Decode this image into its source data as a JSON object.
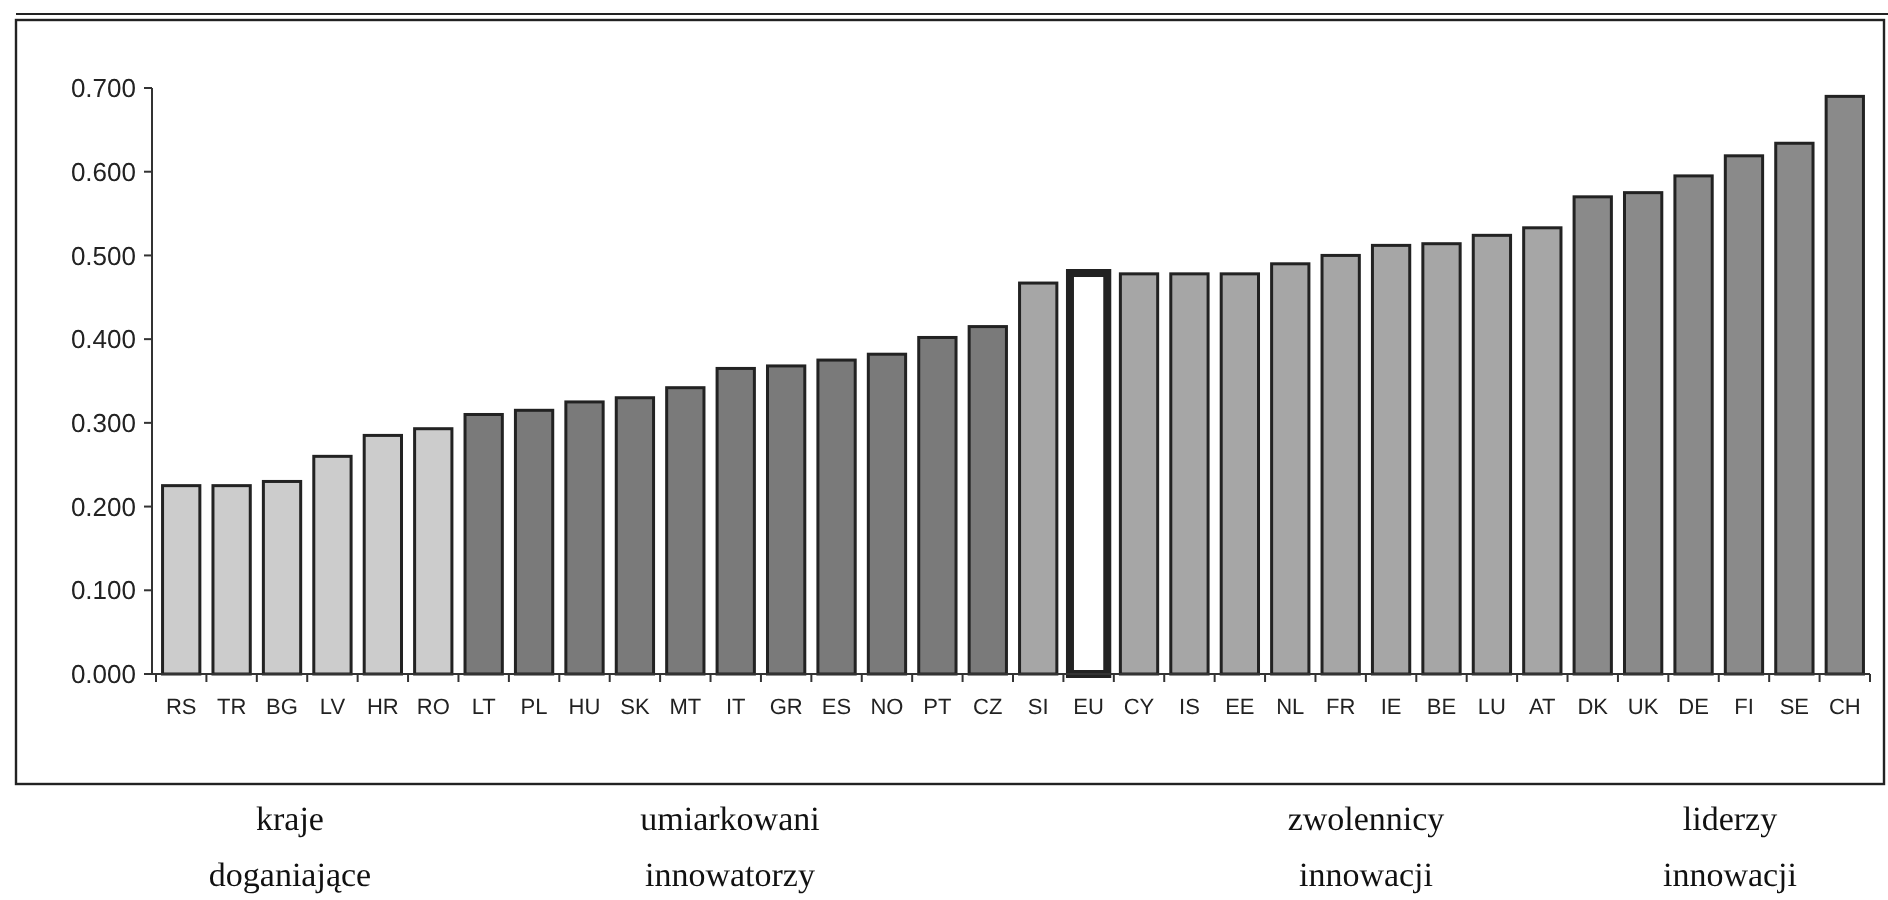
{
  "chart_data": {
    "type": "bar",
    "categories": [
      "RS",
      "TR",
      "BG",
      "LV",
      "HR",
      "RO",
      "LT",
      "PL",
      "HU",
      "SK",
      "MT",
      "IT",
      "GR",
      "ES",
      "NO",
      "PT",
      "CZ",
      "SI",
      "EU",
      "CY",
      "IS",
      "EE",
      "NL",
      "FR",
      "IE",
      "BE",
      "LU",
      "AT",
      "DK",
      "UK",
      "DE",
      "FI",
      "SE",
      "CH"
    ],
    "values": [
      0.225,
      0.225,
      0.23,
      0.26,
      0.285,
      0.293,
      0.31,
      0.315,
      0.325,
      0.33,
      0.342,
      0.365,
      0.368,
      0.375,
      0.382,
      0.402,
      0.415,
      0.467,
      0.479,
      0.478,
      0.478,
      0.478,
      0.49,
      0.5,
      0.512,
      0.514,
      0.524,
      0.533,
      0.57,
      0.575,
      0.595,
      0.619,
      0.634,
      0.69
    ],
    "colors": [
      "#cccccc",
      "#cccccc",
      "#cccccc",
      "#cccccc",
      "#cccccc",
      "#cccccc",
      "#7a7a7a",
      "#7a7a7a",
      "#7a7a7a",
      "#7a7a7a",
      "#7a7a7a",
      "#7a7a7a",
      "#7a7a7a",
      "#7a7a7a",
      "#7a7a7a",
      "#7a7a7a",
      "#7a7a7a",
      "#a6a6a6",
      "#ffffff",
      "#a6a6a6",
      "#a6a6a6",
      "#a6a6a6",
      "#a6a6a6",
      "#a6a6a6",
      "#a6a6a6",
      "#a6a6a6",
      "#a6a6a6",
      "#a6a6a6",
      "#8a8a8a",
      "#8a8a8a",
      "#8a8a8a",
      "#8a8a8a",
      "#8a8a8a",
      "#8a8a8a"
    ],
    "ylim": [
      0,
      0.7
    ],
    "yticks": [
      {
        "value": 0,
        "label": "0.000"
      },
      {
        "value": 0.1,
        "label": "0.100"
      },
      {
        "value": 0.2,
        "label": "0.200"
      },
      {
        "value": 0.3,
        "label": "0.300"
      },
      {
        "value": 0.4,
        "label": "0.400"
      },
      {
        "value": 0.5,
        "label": "0.500"
      },
      {
        "value": 0.6,
        "label": "0.600"
      },
      {
        "value": 0.7,
        "label": "0.700"
      }
    ],
    "grid": false,
    "annotations": [
      "kraje\ndoganiające",
      "umiarkowani\ninnowatorzy",
      "zwolennicy\ninnowacji",
      "liderzy\ninnowacji"
    ]
  }
}
